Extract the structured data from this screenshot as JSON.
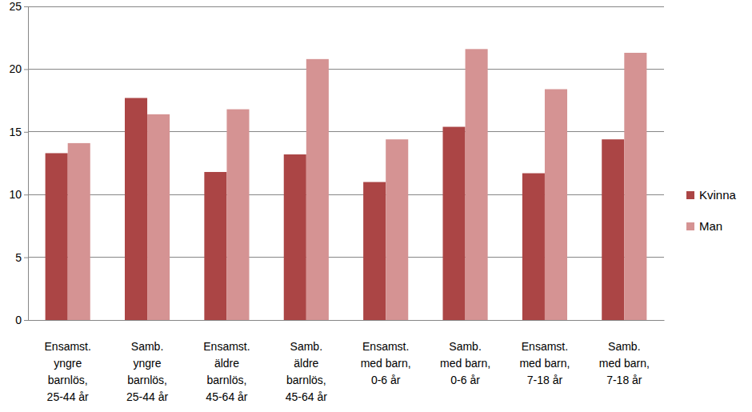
{
  "chart_data": {
    "type": "bar",
    "categories": [
      "Ensamst.\nyngre\nbarnlös,\n25-44 år",
      "Samb.\nyngre\nbarnlös,\n25-44 år",
      "Ensamst.\näldre\nbarnlös,\n45-64 år",
      "Samb.\näldre\nbarnlös,\n45-64 år",
      "Ensamst.\nmed barn,\n0-6 år",
      "Samb.\nmed barn,\n0-6 år",
      "Ensamst.\nmed barn,\n7-18 år",
      "Samb.\nmed barn,\n7-18 år"
    ],
    "series": [
      {
        "name": "Kvinna",
        "color": "#ab4545",
        "values": [
          13.3,
          17.7,
          11.8,
          13.2,
          11.0,
          15.4,
          11.7,
          14.4
        ]
      },
      {
        "name": "Man",
        "color": "#d59393",
        "values": [
          14.1,
          16.4,
          16.8,
          20.8,
          14.4,
          21.6,
          18.4,
          21.3
        ]
      }
    ],
    "ylim": [
      0,
      25
    ],
    "yticks": [
      0,
      5,
      10,
      15,
      20,
      25
    ],
    "grid": true,
    "legend": "right"
  }
}
